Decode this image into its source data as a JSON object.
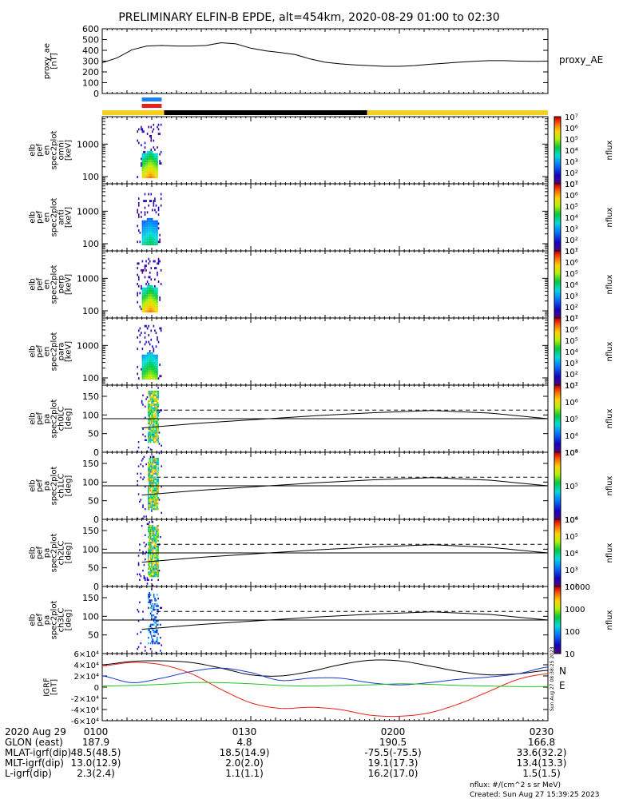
{
  "figure": {
    "title": "PRELIMINARY ELFIN-B EPDE, alt=454km, 2020-08-29 01:00 to 02:30",
    "footer_units": "nflux: #/(cm^2 s sr MeV)",
    "footer_created": "Created: Sun Aug 27 15:39:25 2023",
    "side_stamp": "Sun Aug 27 08:38:25 2023"
  },
  "colors": {
    "yellow": "#f5d020",
    "black": "#000000",
    "blue_bar": "#1a7ff0",
    "red_bar": "#e8201c",
    "geo_x": "#000000",
    "geo_y": "#1a35c8",
    "geo_z": "#e8201c",
    "geo_e": "#22c31f"
  },
  "chart_data": [
    {
      "type": "line",
      "panel": "proxy_ae",
      "ylabel": [
        "proxy_ae",
        "[nT]"
      ],
      "right_label": "proxy_AE",
      "ylim": [
        0,
        600
      ],
      "yticks": [
        "0",
        "100",
        "200",
        "300",
        "400",
        "500",
        "600"
      ],
      "x_minutes": [
        0,
        3,
        6,
        9,
        12,
        15,
        18,
        21,
        24,
        27,
        30,
        33,
        36,
        39,
        42,
        45,
        48,
        51,
        54,
        57,
        60,
        63,
        66,
        69,
        72,
        75,
        78,
        81,
        84,
        87,
        90
      ],
      "values": [
        285,
        330,
        405,
        440,
        445,
        440,
        440,
        445,
        470,
        460,
        420,
        395,
        380,
        360,
        320,
        290,
        275,
        265,
        258,
        252,
        252,
        258,
        270,
        280,
        290,
        298,
        305,
        305,
        300,
        298,
        300
      ]
    },
    {
      "type": "bar",
      "panel": "orbit_bar",
      "segments": [
        {
          "start": 0,
          "end": 12.5,
          "color": "yellow"
        },
        {
          "start": 12.5,
          "end": 53.5,
          "color": "black"
        },
        {
          "start": 53.5,
          "end": 90,
          "color": "yellow"
        }
      ],
      "markers": [
        {
          "start": 8,
          "end": 12,
          "color": "blue_bar"
        },
        {
          "start": 8,
          "end": 12,
          "color": "red_bar"
        }
      ]
    },
    {
      "type": "heatmap",
      "panel": "spec_omni",
      "ylabel": [
        "elb",
        "pef",
        "en",
        "spec2plot",
        "omni",
        "[keV]"
      ],
      "yticks": [
        "100",
        "1000"
      ],
      "ylim": [
        60,
        7000
      ],
      "log": true,
      "zlabel": "nflux",
      "zlim": [
        10,
        10000000
      ],
      "zticks": [
        "10¹",
        "10²",
        "10³",
        "10⁴",
        "10⁵",
        "10⁶",
        "10⁷"
      ],
      "x_range_minutes": [
        7,
        12
      ],
      "intensity_peak": "high"
    },
    {
      "type": "heatmap",
      "panel": "spec_anti",
      "ylabel": [
        "elb",
        "pef",
        "en",
        "spec2plot",
        "anti",
        "[keV]"
      ],
      "yticks": [
        "100",
        "1000"
      ],
      "ylim": [
        60,
        7000
      ],
      "log": true,
      "zlabel": "nflux",
      "zlim": [
        10,
        10000000
      ],
      "zticks": [
        "10¹",
        "10²",
        "10³",
        "10⁴",
        "10⁵",
        "10⁶",
        "10⁷"
      ],
      "x_range_minutes": [
        7,
        12
      ],
      "intensity_peak": "low"
    },
    {
      "type": "heatmap",
      "panel": "spec_perp",
      "ylabel": [
        "elb",
        "pef",
        "en",
        "spec2plot",
        "perp",
        "[keV]"
      ],
      "yticks": [
        "100",
        "1000"
      ],
      "ylim": [
        60,
        7000
      ],
      "log": true,
      "zlabel": "nflux",
      "zlim": [
        10,
        10000000
      ],
      "zticks": [
        "10¹",
        "10²",
        "10³",
        "10⁴",
        "10⁵",
        "10⁶",
        "10⁷"
      ],
      "x_range_minutes": [
        7,
        12
      ],
      "intensity_peak": "high"
    },
    {
      "type": "heatmap",
      "panel": "spec_para",
      "ylabel": [
        "elb",
        "pef",
        "en",
        "spec2plot",
        "para",
        "[keV]"
      ],
      "yticks": [
        "100",
        "1000"
      ],
      "ylim": [
        60,
        7000
      ],
      "log": true,
      "zlabel": "nflux",
      "zlim": [
        10,
        10000000
      ],
      "zticks": [
        "10¹",
        "10²",
        "10³",
        "10⁴",
        "10⁵",
        "10⁶",
        "10⁷"
      ],
      "x_range_minutes": [
        7,
        12
      ],
      "intensity_peak": "mid"
    },
    {
      "type": "heatmap",
      "panel": "pa_ch0",
      "ylabel": [
        "elb",
        "pef",
        "pa",
        "spec2plot",
        "ch0LC",
        "[deg]"
      ],
      "yticks": [
        "0",
        "50",
        "100",
        "150"
      ],
      "ylim": [
        0,
        180
      ],
      "zlabel": "nflux",
      "zlim": [
        1000,
        10000000
      ],
      "zticks": [
        "10³",
        "10⁴",
        "10⁵",
        "10⁶",
        "10⁷"
      ],
      "x_range_minutes": [
        7,
        12
      ],
      "lc_solid": [
        65,
        78,
        88,
        98,
        106,
        112,
        105,
        90
      ],
      "lc_dashed": 113,
      "lc_dashed_start": 11
    },
    {
      "type": "heatmap",
      "panel": "pa_ch1",
      "ylabel": [
        "elb",
        "pef",
        "pa",
        "spec2plot",
        "ch1LC",
        "[deg]"
      ],
      "yticks": [
        "0",
        "50",
        "100",
        "150"
      ],
      "ylim": [
        0,
        180
      ],
      "zlabel": "nflux",
      "zlim": [
        1000,
        10000000
      ],
      "zticks": [
        "10⁴",
        "10⁵",
        "10⁶"
      ],
      "x_range_minutes": [
        7,
        12
      ],
      "lc_solid": [
        65,
        78,
        88,
        98,
        106,
        112,
        105,
        90
      ],
      "lc_dashed": 113,
      "lc_dashed_start": 11
    },
    {
      "type": "heatmap",
      "panel": "pa_ch2",
      "ylabel": [
        "elb",
        "pef",
        "pa",
        "spec2plot",
        "ch2LC",
        "[deg]"
      ],
      "yticks": [
        "0",
        "50",
        "100",
        "150"
      ],
      "ylim": [
        0,
        180
      ],
      "zlabel": "nflux",
      "zlim": [
        100,
        1000000
      ],
      "zticks": [
        "10²",
        "10³",
        "10⁴",
        "10⁵",
        "10⁶"
      ],
      "x_range_minutes": [
        7,
        12
      ],
      "lc_solid": [
        65,
        78,
        88,
        98,
        106,
        112,
        105,
        90
      ],
      "lc_dashed": 113,
      "lc_dashed_start": 11
    },
    {
      "type": "heatmap",
      "panel": "pa_ch3",
      "ylabel": [
        "elb",
        "pef",
        "pa",
        "spec2plot",
        "ch3LC",
        "[deg]"
      ],
      "yticks": [
        "50",
        "100",
        "150"
      ],
      "ylim": [
        0,
        180
      ],
      "zlabel": "nflux",
      "zlim": [
        10,
        10000
      ],
      "zticks": [
        "10",
        "100",
        "1000",
        "10000"
      ],
      "x_range_minutes": [
        7,
        12
      ],
      "lc_solid": [
        65,
        78,
        88,
        98,
        106,
        112,
        105,
        90
      ],
      "lc_dashed": 113,
      "lc_dashed_start": 11
    },
    {
      "type": "line",
      "panel": "igrf",
      "ylabel": [
        "IGRF",
        "[nT]"
      ],
      "ylim": [
        -60000,
        60000
      ],
      "yticks": [
        "-6×10⁴",
        "-4×10⁴",
        "-2×10⁴",
        "0",
        "2×10⁴",
        "4×10⁴",
        "6×10⁴"
      ],
      "legend": [
        "N",
        "E"
      ],
      "x_minutes": [
        0,
        6,
        12,
        18,
        24,
        30,
        36,
        42,
        48,
        54,
        60,
        66,
        72,
        78,
        84,
        90
      ],
      "series": [
        {
          "name": "X",
          "color": "geo_x",
          "values": [
            40000,
            46000,
            47000,
            44000,
            34000,
            22000,
            20000,
            28000,
            40000,
            48000,
            47000,
            38000,
            28000,
            22000,
            24000,
            30000
          ]
        },
        {
          "name": "Y",
          "color": "geo_y",
          "values": [
            20000,
            8000,
            16000,
            28000,
            34000,
            26000,
            12000,
            16000,
            16000,
            8000,
            4000,
            8000,
            14000,
            18000,
            24000,
            36000
          ]
        },
        {
          "name": "Z",
          "color": "geo_z",
          "values": [
            38000,
            44000,
            40000,
            24000,
            -4000,
            -28000,
            -38000,
            -36000,
            -40000,
            -50000,
            -52000,
            -46000,
            -30000,
            -8000,
            14000,
            24000
          ]
        },
        {
          "name": "E",
          "color": "geo_e",
          "values": [
            2000,
            3000,
            5000,
            8000,
            8000,
            6000,
            3000,
            2000,
            3000,
            4000,
            6000,
            5000,
            3000,
            2000,
            1000,
            1000
          ]
        }
      ]
    }
  ],
  "xaxis": {
    "rows": [
      {
        "label": "2020 Aug 29",
        "values": [
          "0100",
          "0130",
          "0200",
          "0230"
        ]
      },
      {
        "label": "GLON (east)",
        "values": [
          "187.9",
          "4.8",
          "190.5",
          "166.8"
        ]
      },
      {
        "label": "MLAT-igrf(dip)",
        "values": [
          "48.5(48.5)",
          "18.5(14.9)",
          "-75.5(-75.5)",
          "33.6(32.2)"
        ]
      },
      {
        "label": "MLT-igrf(dip)",
        "values": [
          "13.0(12.9)",
          "2.0(2.0)",
          "19.1(17.3)",
          "13.4(13.3)"
        ]
      },
      {
        "label": "L-igrf(dip)",
        "values": [
          "2.3(2.4)",
          "1.1(1.1)",
          "16.2(17.0)",
          "1.5(1.5)"
        ]
      }
    ]
  }
}
